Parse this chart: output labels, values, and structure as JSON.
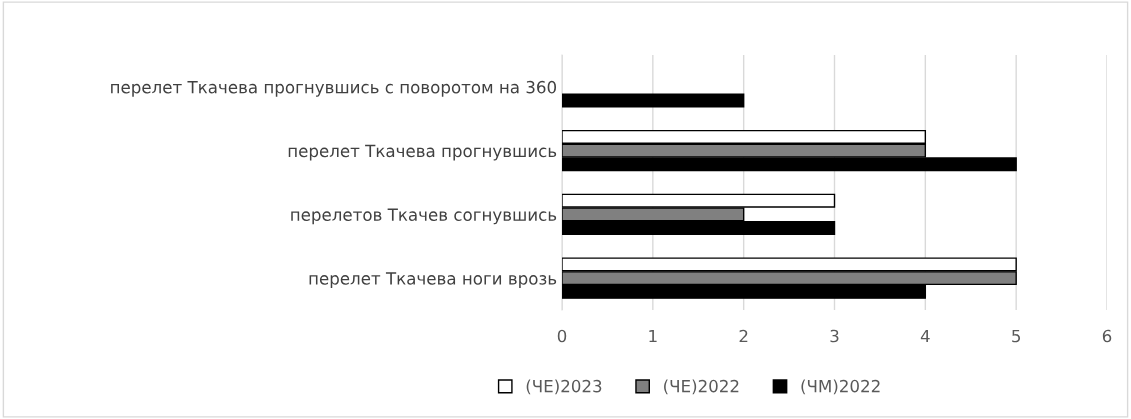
{
  "chart_data": {
    "type": "bar",
    "orientation": "horizontal",
    "categories": [
      "перелет Ткачева прогнувшись с поворотом на 360",
      "перелет Ткачева прогнувшись",
      "перелетов Ткачев согнувшись",
      "перелет Ткачева ноги врозь"
    ],
    "series": [
      {
        "name": "(ЧЕ)2023",
        "color": "#ffffff",
        "values": [
          null,
          4,
          3,
          5
        ]
      },
      {
        "name": "(ЧЕ)2022",
        "color": "#808080",
        "values": [
          null,
          4,
          2,
          5
        ]
      },
      {
        "name": "(ЧМ)2022",
        "color": "#000000",
        "values": [
          2,
          5,
          3,
          4
        ]
      }
    ],
    "xlim": [
      0,
      6
    ],
    "xticks": [
      0,
      1,
      2,
      3,
      4,
      5,
      6
    ],
    "grid": "x",
    "legend": "bottom"
  }
}
